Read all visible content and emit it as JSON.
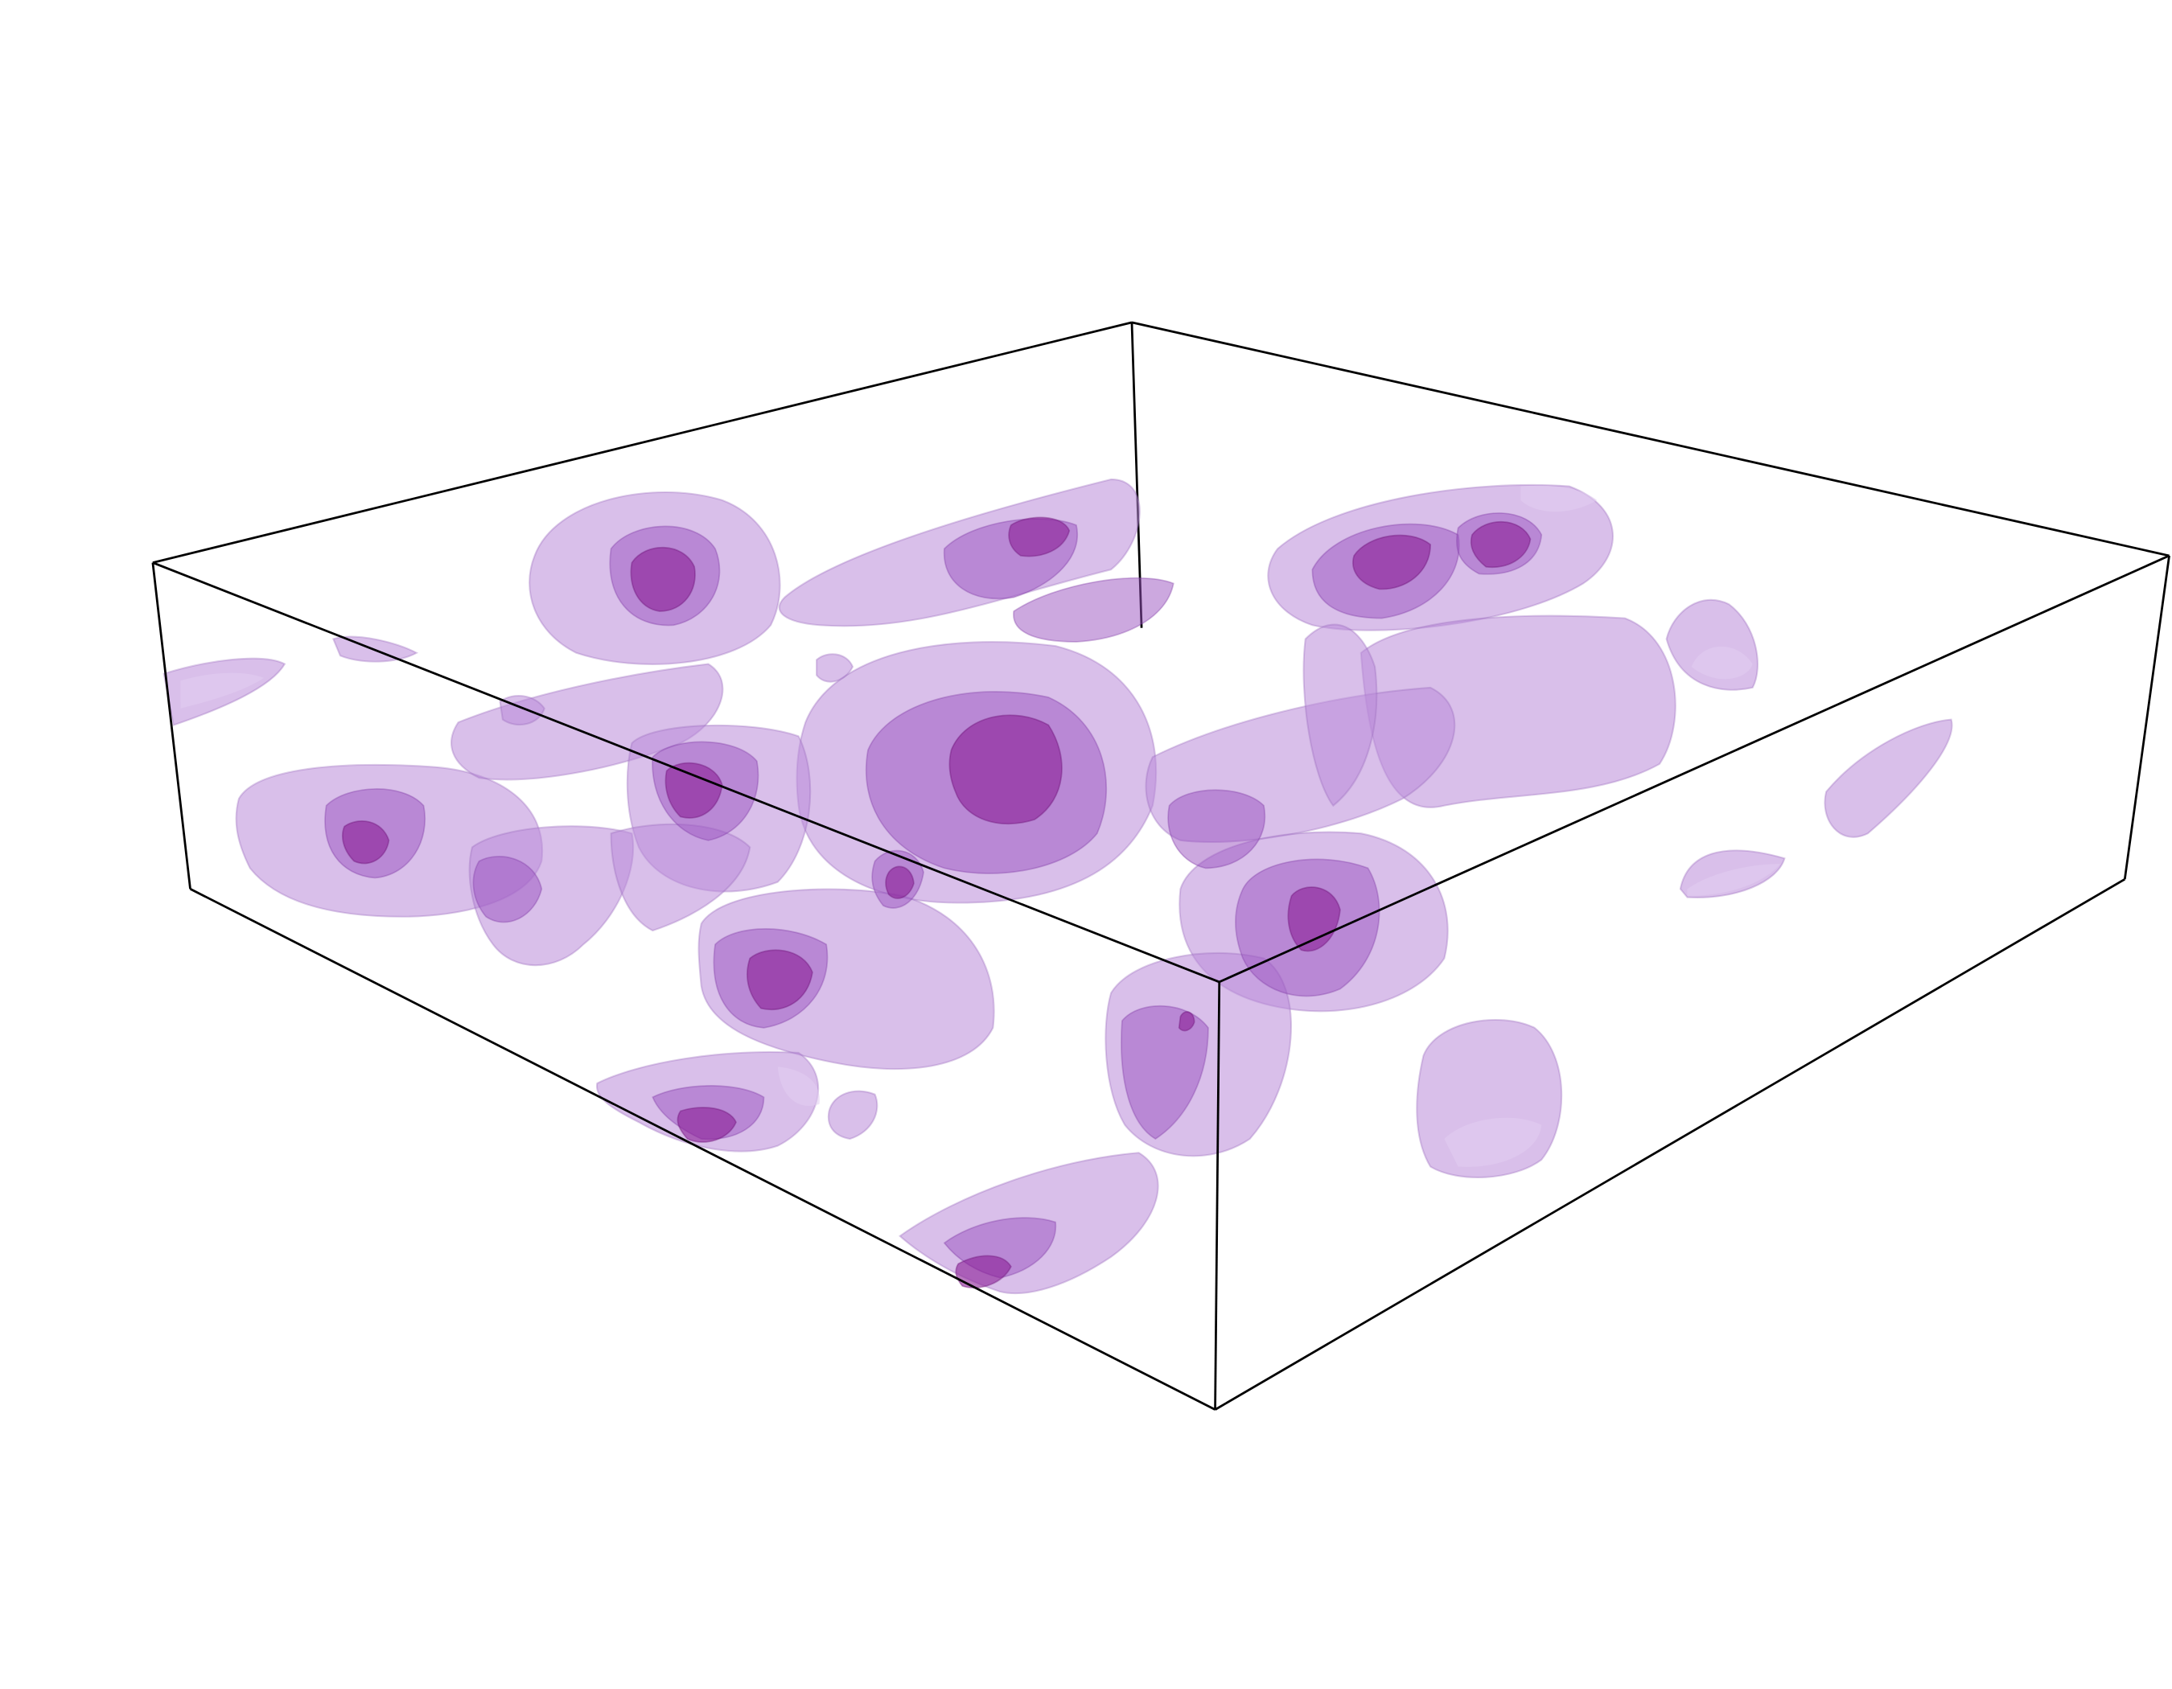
{
  "figure": {
    "colors": {
      "background": "#ffffff",
      "box_edge": "#000000",
      "iso_outer": "#b98ad8",
      "iso_middle": "#9a52c0",
      "iso_inner": "#8a1e96"
    }
  }
}
